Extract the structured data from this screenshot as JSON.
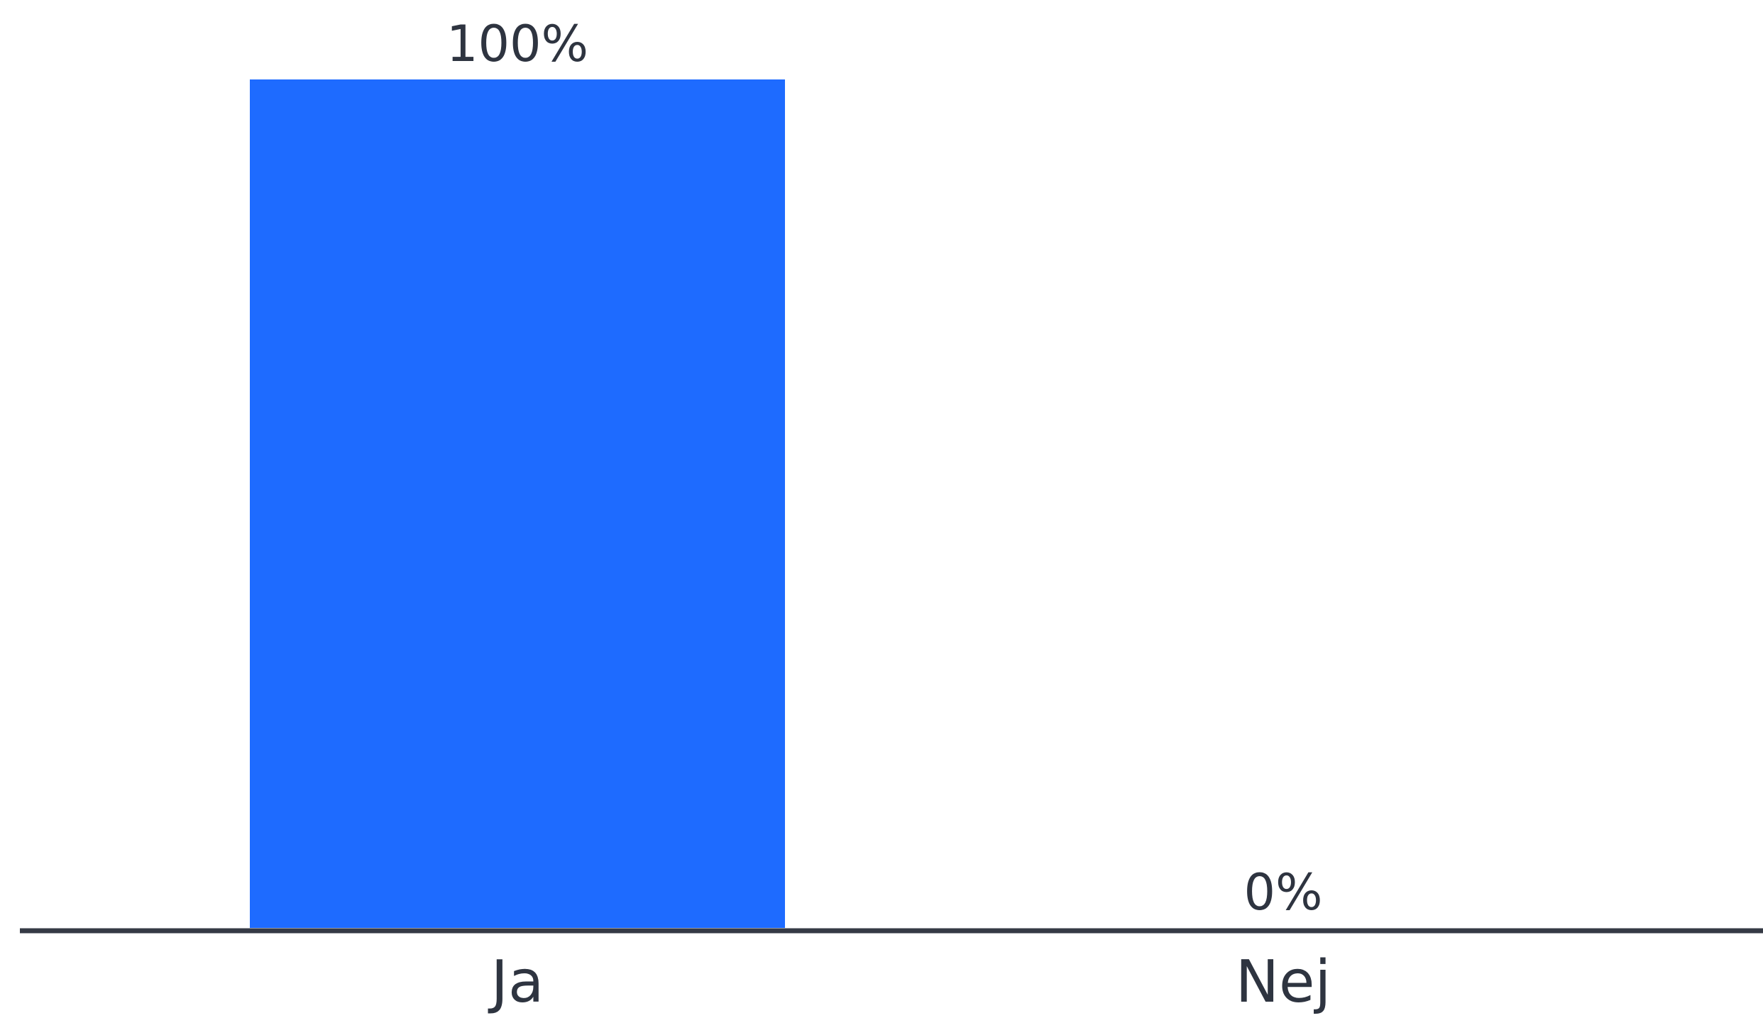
{
  "chart_data": {
    "type": "bar",
    "categories": [
      "Ja",
      "Nej"
    ],
    "values": [
      100,
      0
    ],
    "data_labels": [
      "100%",
      "0%"
    ],
    "ylim": [
      0,
      100
    ],
    "grid": false,
    "legend": "none",
    "colors": {
      "bar": "#1e6bff",
      "axis": "#353a45",
      "text": "#2e3440"
    }
  }
}
